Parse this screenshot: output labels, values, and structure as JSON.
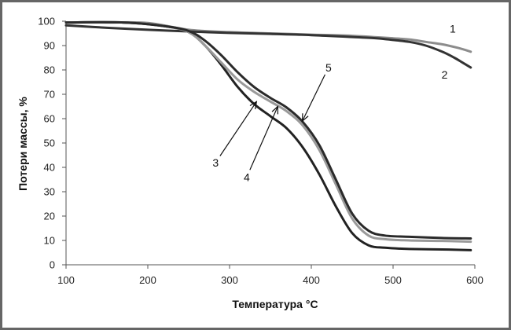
{
  "chart_data": {
    "type": "line",
    "xlabel": "Температура °С",
    "ylabel": "Потери массы, %",
    "xlim": [
      100,
      600
    ],
    "ylim": [
      0,
      100
    ],
    "xticks": [
      "100",
      "200",
      "300",
      "400",
      "500",
      "600"
    ],
    "yticks": [
      "0",
      "10",
      "20",
      "30",
      "40",
      "50",
      "60",
      "70",
      "80",
      "90",
      "100"
    ],
    "grid": false,
    "series": [
      {
        "name": "1",
        "color": "#8c8c8c",
        "x": [
          100,
          150,
          200,
          250,
          300,
          350,
          400,
          450,
          500,
          520,
          540,
          560,
          580,
          595
        ],
        "y": [
          99.5,
          99.5,
          99.3,
          96.5,
          95.5,
          95,
          94.5,
          94,
          93,
          92.5,
          91.5,
          90.5,
          89,
          87.5
        ]
      },
      {
        "name": "2",
        "color": "#333333",
        "x": [
          100,
          150,
          200,
          250,
          300,
          350,
          400,
          450,
          480,
          500,
          520,
          540,
          560,
          575,
          585,
          595
        ],
        "y": [
          98.3,
          97.3,
          96.5,
          95.8,
          95.2,
          94.8,
          94.3,
          93.5,
          93,
          92.3,
          91.5,
          90,
          87.5,
          85,
          83,
          81
        ]
      },
      {
        "name": "3",
        "color": "#222222",
        "x": [
          100,
          170,
          220,
          250,
          270,
          290,
          310,
          330,
          350,
          370,
          390,
          410,
          430,
          450,
          470,
          490,
          520,
          560,
          595
        ],
        "y": [
          99.5,
          99.5,
          98,
          95.5,
          90,
          82,
          73,
          66,
          61,
          56,
          48,
          37,
          24,
          13,
          8,
          7,
          6.5,
          6.3,
          6
        ]
      },
      {
        "name": "4",
        "color": "#9a9a9a",
        "x": [
          100,
          170,
          220,
          250,
          270,
          290,
          310,
          330,
          350,
          370,
          390,
          410,
          430,
          450,
          470,
          490,
          520,
          560,
          595
        ],
        "y": [
          99.5,
          99.5,
          98,
          95.5,
          90,
          83,
          76,
          71,
          67,
          63,
          57,
          47,
          33,
          19,
          12,
          10.5,
          10,
          9.8,
          9.5
        ]
      },
      {
        "name": "5",
        "color": "#2a2a2a",
        "x": [
          100,
          170,
          220,
          250,
          270,
          290,
          310,
          330,
          350,
          370,
          390,
          410,
          430,
          450,
          470,
          490,
          520,
          560,
          595
        ],
        "y": [
          99.5,
          99.5,
          98,
          96,
          92,
          86,
          79,
          73,
          68.5,
          64.5,
          58.5,
          49,
          35,
          21,
          14,
          12,
          11.5,
          11,
          10.8
        ]
      }
    ],
    "annotations": [
      {
        "text": "1",
        "x": 573,
        "y": 97
      },
      {
        "text": "2",
        "x": 563,
        "y": 78
      },
      {
        "text": "3",
        "x": 283,
        "y": 42,
        "arrow_to": [
          333,
          67
        ]
      },
      {
        "text": "4",
        "x": 321,
        "y": 36,
        "arrow_to": [
          359,
          65
        ]
      },
      {
        "text": "5",
        "x": 421,
        "y": 81,
        "arrow_to": [
          389,
          59
        ]
      }
    ]
  }
}
